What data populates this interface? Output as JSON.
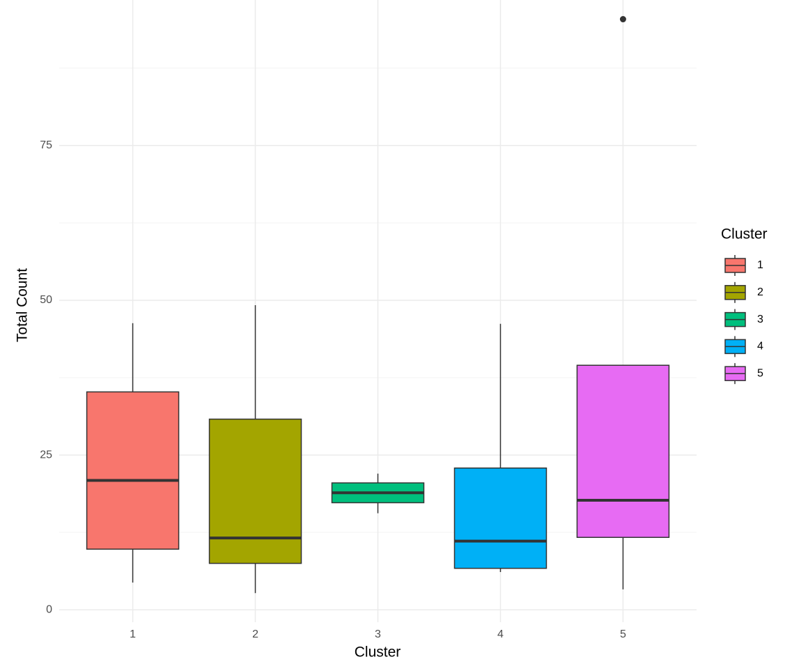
{
  "chart_data": {
    "type": "box",
    "x_label": "Cluster",
    "y_label": "Total Count",
    "legend_title": "Cluster",
    "legend_position": "right",
    "categories": [
      "1",
      "2",
      "3",
      "4",
      "5"
    ],
    "boxes": [
      {
        "name": "1",
        "color": "#F8766D",
        "whisker_low": 4.4,
        "q1": 9.8,
        "median": 20.9,
        "q3": 35.2,
        "whisker_high": 46.3,
        "outliers": []
      },
      {
        "name": "2",
        "color": "#A3A500",
        "whisker_low": 2.7,
        "q1": 7.5,
        "median": 11.6,
        "q3": 30.8,
        "whisker_high": 49.2,
        "outliers": []
      },
      {
        "name": "3",
        "color": "#00BF7D",
        "whisker_low": 15.6,
        "q1": 17.3,
        "median": 18.9,
        "q3": 20.5,
        "whisker_high": 22.0,
        "outliers": []
      },
      {
        "name": "4",
        "color": "#00B0F6",
        "whisker_low": 6.1,
        "q1": 6.7,
        "median": 11.1,
        "q3": 22.9,
        "whisker_high": 46.2,
        "outliers": []
      },
      {
        "name": "5",
        "color": "#E76BF3",
        "whisker_low": 3.3,
        "q1": 11.7,
        "median": 17.7,
        "q3": 39.5,
        "whisker_high": 39.5,
        "outliers": [
          95.4
        ]
      }
    ],
    "ylim": [
      -2,
      98.5
    ],
    "yticks": [
      0,
      25,
      50,
      75
    ],
    "yminor": [
      12.5,
      37.5,
      62.5,
      87.5
    ],
    "grid": true
  }
}
